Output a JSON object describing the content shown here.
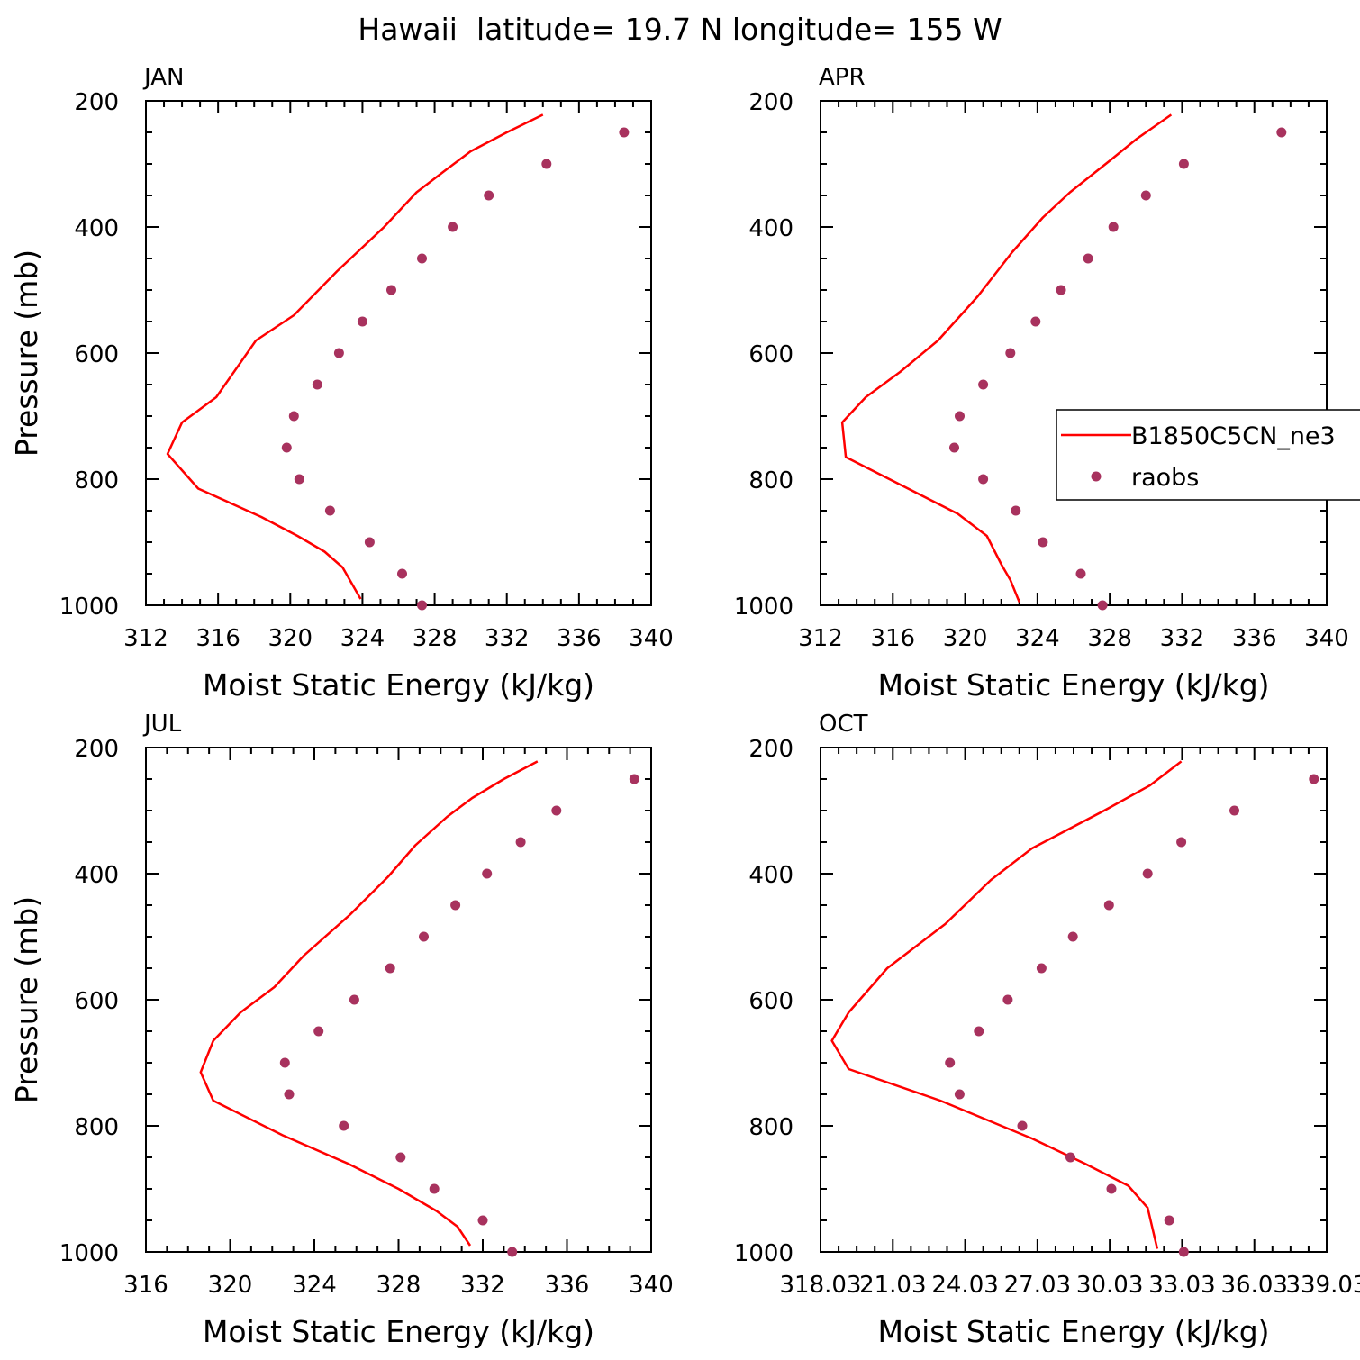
{
  "figure_title": "Hawaii  latitude= 19.7 N longitude= 155 W",
  "legend": {
    "model_label": "B1850C5CN_ne3",
    "obs_label": "raobs"
  },
  "colors": {
    "model": "#ff0000",
    "obs": "#a8325e",
    "axes": "#000000"
  },
  "chart_data": [
    {
      "type": "line",
      "panel_label": "JAN",
      "xlabel": "Moist Static Energy (kJ/kg)",
      "ylabel": "Pressure (mb)",
      "xlim": [
        312,
        340
      ],
      "ylim": [
        1000,
        200
      ],
      "xticks": [
        "312",
        "316",
        "320",
        "324",
        "328",
        "332",
        "336",
        "340"
      ],
      "yticks": [
        "200",
        "400",
        "600",
        "800",
        "1000"
      ],
      "series": [
        {
          "name": "B1850C5CN_ne3",
          "kind": "line",
          "x": [
            334.0,
            332.0,
            330.0,
            328.6,
            327.0,
            325.2,
            322.6,
            320.2,
            318.1,
            315.9,
            314.0,
            313.2,
            314.9,
            318.4,
            320.4,
            321.9,
            322.9,
            323.3,
            323.9
          ],
          "y": [
            222,
            250,
            280,
            310,
            345,
            400,
            470,
            540,
            580,
            670,
            710,
            760,
            815,
            860,
            890,
            915,
            940,
            960,
            990
          ]
        },
        {
          "name": "raobs",
          "kind": "scatter",
          "x": [
            338.5,
            334.2,
            331.0,
            329.0,
            327.3,
            325.6,
            324.0,
            322.7,
            321.5,
            320.2,
            319.8,
            320.5,
            322.2,
            324.4,
            326.2,
            327.3
          ],
          "y": [
            250,
            300,
            350,
            400,
            450,
            500,
            550,
            600,
            650,
            700,
            750,
            800,
            850,
            900,
            950,
            1000
          ]
        }
      ]
    },
    {
      "type": "line",
      "panel_label": "APR",
      "xlabel": "Moist Static Energy (kJ/kg)",
      "ylabel": "",
      "xlim": [
        312,
        340
      ],
      "ylim": [
        1000,
        200
      ],
      "xticks": [
        "312",
        "316",
        "320",
        "324",
        "328",
        "332",
        "336",
        "340"
      ],
      "yticks": [
        "200",
        "400",
        "600",
        "800",
        "1000"
      ],
      "series": [
        {
          "name": "B1850C5CN_ne3",
          "kind": "line",
          "x": [
            331.4,
            329.5,
            328.0,
            325.8,
            324.3,
            322.6,
            320.7,
            318.5,
            316.4,
            314.5,
            313.2,
            313.4,
            316.5,
            319.6,
            321.2,
            322.0,
            322.5,
            323.0
          ],
          "y": [
            222,
            260,
            295,
            345,
            385,
            440,
            510,
            580,
            630,
            670,
            710,
            765,
            810,
            855,
            890,
            935,
            960,
            995
          ]
        },
        {
          "name": "raobs",
          "kind": "scatter",
          "x": [
            337.5,
            332.1,
            330.0,
            328.2,
            326.8,
            325.3,
            323.9,
            322.5,
            321.0,
            319.7,
            319.4,
            321.0,
            322.8,
            324.3,
            326.4,
            327.6
          ],
          "y": [
            250,
            300,
            350,
            400,
            450,
            500,
            550,
            600,
            650,
            700,
            750,
            800,
            850,
            900,
            950,
            1000
          ]
        }
      ]
    },
    {
      "type": "line",
      "panel_label": "JUL",
      "xlabel": "Moist Static Energy (kJ/kg)",
      "ylabel": "Pressure (mb)",
      "xlim": [
        316,
        340
      ],
      "ylim": [
        1000,
        200
      ],
      "xticks": [
        "316",
        "320",
        "324",
        "328",
        "332",
        "336",
        "340"
      ],
      "yticks": [
        "200",
        "400",
        "600",
        "800",
        "1000"
      ],
      "series": [
        {
          "name": "B1850C5CN_ne3",
          "kind": "line",
          "x": [
            334.6,
            333.0,
            331.5,
            330.3,
            328.8,
            327.5,
            325.7,
            323.5,
            322.1,
            320.5,
            319.2,
            318.6,
            319.2,
            322.5,
            325.6,
            328.0,
            329.8,
            330.8,
            331.4
          ],
          "y": [
            222,
            250,
            280,
            310,
            355,
            405,
            465,
            530,
            580,
            620,
            665,
            715,
            760,
            815,
            860,
            900,
            935,
            960,
            990
          ]
        },
        {
          "name": "raobs",
          "kind": "scatter",
          "x": [
            339.2,
            335.5,
            333.8,
            332.2,
            330.7,
            329.2,
            327.6,
            325.9,
            324.2,
            322.6,
            322.8,
            325.4,
            328.1,
            329.7,
            332.0,
            333.4
          ],
          "y": [
            250,
            300,
            350,
            400,
            450,
            500,
            550,
            600,
            650,
            700,
            750,
            800,
            850,
            900,
            950,
            1000
          ]
        }
      ]
    },
    {
      "type": "line",
      "panel_label": "OCT",
      "xlabel": "Moist Static Energy (kJ/kg)",
      "ylabel": "",
      "xlim": [
        318.03,
        339.03
      ],
      "ylim": [
        1000,
        200
      ],
      "xticks": [
        "318.03",
        "21.03",
        "24.03",
        "27.03",
        "30.03",
        "33.03",
        "36.03",
        "339.03"
      ],
      "yticks": [
        "200",
        "400",
        "600",
        "800",
        "1000"
      ],
      "series": [
        {
          "name": "B1850C5CN_ne3",
          "kind": "line",
          "x": [
            333.0,
            331.7,
            329.8,
            326.8,
            325.1,
            323.2,
            320.8,
            319.2,
            318.5,
            319.2,
            323.0,
            326.8,
            329.0,
            330.8,
            331.6,
            332.0
          ],
          "y": [
            222,
            260,
            300,
            360,
            410,
            480,
            550,
            620,
            665,
            710,
            760,
            820,
            860,
            895,
            930,
            995
          ]
        },
        {
          "name": "raobs",
          "kind": "scatter",
          "x": [
            338.5,
            335.2,
            333.0,
            331.6,
            330.0,
            328.5,
            327.2,
            325.8,
            324.6,
            323.4,
            323.8,
            326.4,
            328.4,
            330.1,
            332.5,
            333.1
          ],
          "y": [
            250,
            300,
            350,
            400,
            450,
            500,
            550,
            600,
            650,
            700,
            750,
            800,
            850,
            900,
            950,
            1000
          ]
        }
      ]
    }
  ]
}
